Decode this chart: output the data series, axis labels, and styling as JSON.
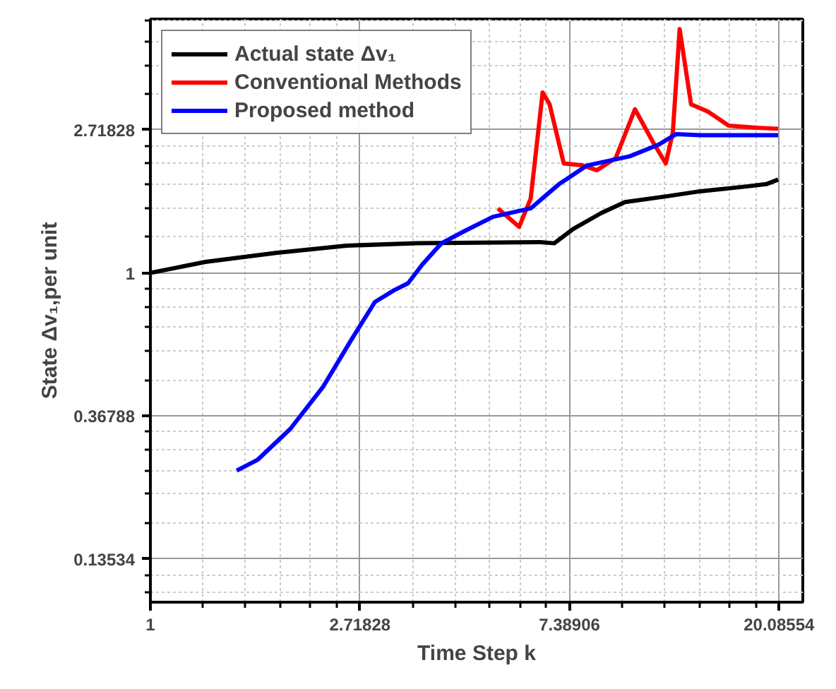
{
  "chart_data": {
    "type": "line",
    "xlabel": "Time Step k",
    "ylabel": "State Δv₁,per unit",
    "log": "xy",
    "grid": true,
    "legend": "top left",
    "line_style": "solid",
    "marker": "none",
    "xlim": [
      1,
      22.5
    ],
    "ylim": [
      0.1,
      5.9
    ],
    "xticks": [
      1,
      2.71828,
      7.38906,
      20.08554
    ],
    "yticks": [
      0.13534,
      0.36788,
      1,
      2.71828
    ],
    "series": [
      {
        "name": "Actual state Δv₁",
        "color": "#000000",
        "x": [
          1,
          1.3,
          1.82,
          2.55,
          3.58,
          6.43,
          6.87,
          7.52,
          8.6,
          9.63,
          11.8,
          13.8,
          17.2,
          18.9,
          20.0
        ],
        "values": [
          1.0,
          1.08,
          1.15,
          1.21,
          1.23,
          1.24,
          1.23,
          1.36,
          1.52,
          1.64,
          1.71,
          1.77,
          1.83,
          1.86,
          1.92
        ]
      },
      {
        "name": "Conventional Methods",
        "color": "#ff0000",
        "x": [
          5.25,
          5.81,
          6.14,
          6.5,
          6.72,
          7.19,
          7.87,
          8.42,
          9.21,
          10.1,
          11.0,
          11.7,
          12.1,
          12.5,
          13.2,
          14.3,
          15.8,
          18.1,
          20.0
        ],
        "values": [
          1.57,
          1.38,
          1.68,
          3.53,
          3.25,
          2.15,
          2.12,
          2.05,
          2.23,
          3.14,
          2.5,
          2.15,
          2.67,
          5.5,
          3.25,
          3.09,
          2.8,
          2.76,
          2.74
        ]
      },
      {
        "name": "Proposed method",
        "color": "#0000ff",
        "x": [
          1.51,
          1.67,
          1.95,
          2.28,
          2.61,
          2.92,
          3.2,
          3.42,
          3.66,
          4.01,
          4.48,
          5.13,
          6.14,
          7.03,
          8.04,
          9.85,
          11.3,
          12.3,
          13.8,
          20.0
        ],
        "values": [
          0.251,
          0.271,
          0.336,
          0.451,
          0.627,
          0.816,
          0.886,
          0.93,
          1.06,
          1.23,
          1.34,
          1.48,
          1.57,
          1.86,
          2.12,
          2.26,
          2.45,
          2.64,
          2.62,
          2.62
        ]
      }
    ]
  }
}
